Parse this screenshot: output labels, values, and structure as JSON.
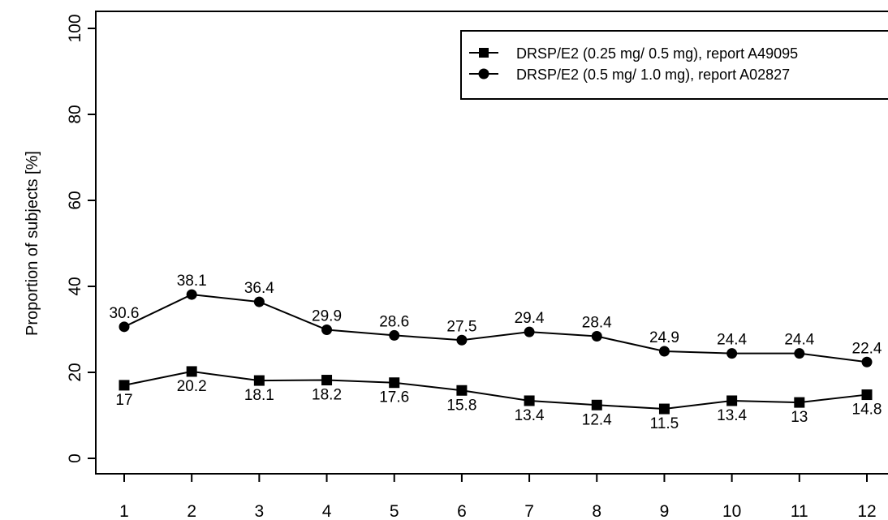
{
  "chart_data": {
    "type": "line",
    "title": "",
    "xlabel": "",
    "ylabel": "Proportion of subjects [%]",
    "x": [
      1,
      2,
      3,
      4,
      5,
      6,
      7,
      8,
      9,
      10,
      11,
      12
    ],
    "xticks": [
      "1",
      "2",
      "3",
      "4",
      "5",
      "6",
      "7",
      "8",
      "9",
      "10",
      "11",
      "12"
    ],
    "yticks": [
      "0",
      "20",
      "40",
      "60",
      "80",
      "100"
    ],
    "ylim": [
      0,
      100
    ],
    "grid": false,
    "legend_position": "top-right",
    "series": [
      {
        "name": "DRSP/E2 (0.25 mg/ 0.5 mg), report A49095",
        "marker": "square",
        "values": [
          17,
          20.2,
          18.1,
          18.2,
          17.6,
          15.8,
          13.4,
          12.4,
          11.5,
          13.4,
          13,
          14.8
        ],
        "labels": [
          "17",
          "20.2",
          "18.1",
          "18.2",
          "17.6",
          "15.8",
          "13.4",
          "12.4",
          "11.5",
          "13.4",
          "13",
          "14.8"
        ],
        "label_placement": "below"
      },
      {
        "name": "DRSP/E2 (0.5 mg/ 1.0 mg), report A02827",
        "marker": "circle",
        "values": [
          30.6,
          38.1,
          36.4,
          29.9,
          28.6,
          27.5,
          29.4,
          28.4,
          24.9,
          24.4,
          24.4,
          22.4
        ],
        "labels": [
          "30.6",
          "38.1",
          "36.4",
          "29.9",
          "28.6",
          "27.5",
          "29.4",
          "28.4",
          "24.9",
          "24.4",
          "24.4",
          "22.4"
        ],
        "label_placement": "above"
      }
    ],
    "colors": {
      "line": "#000000",
      "marker": "#000000",
      "background": "#ffffff"
    }
  }
}
